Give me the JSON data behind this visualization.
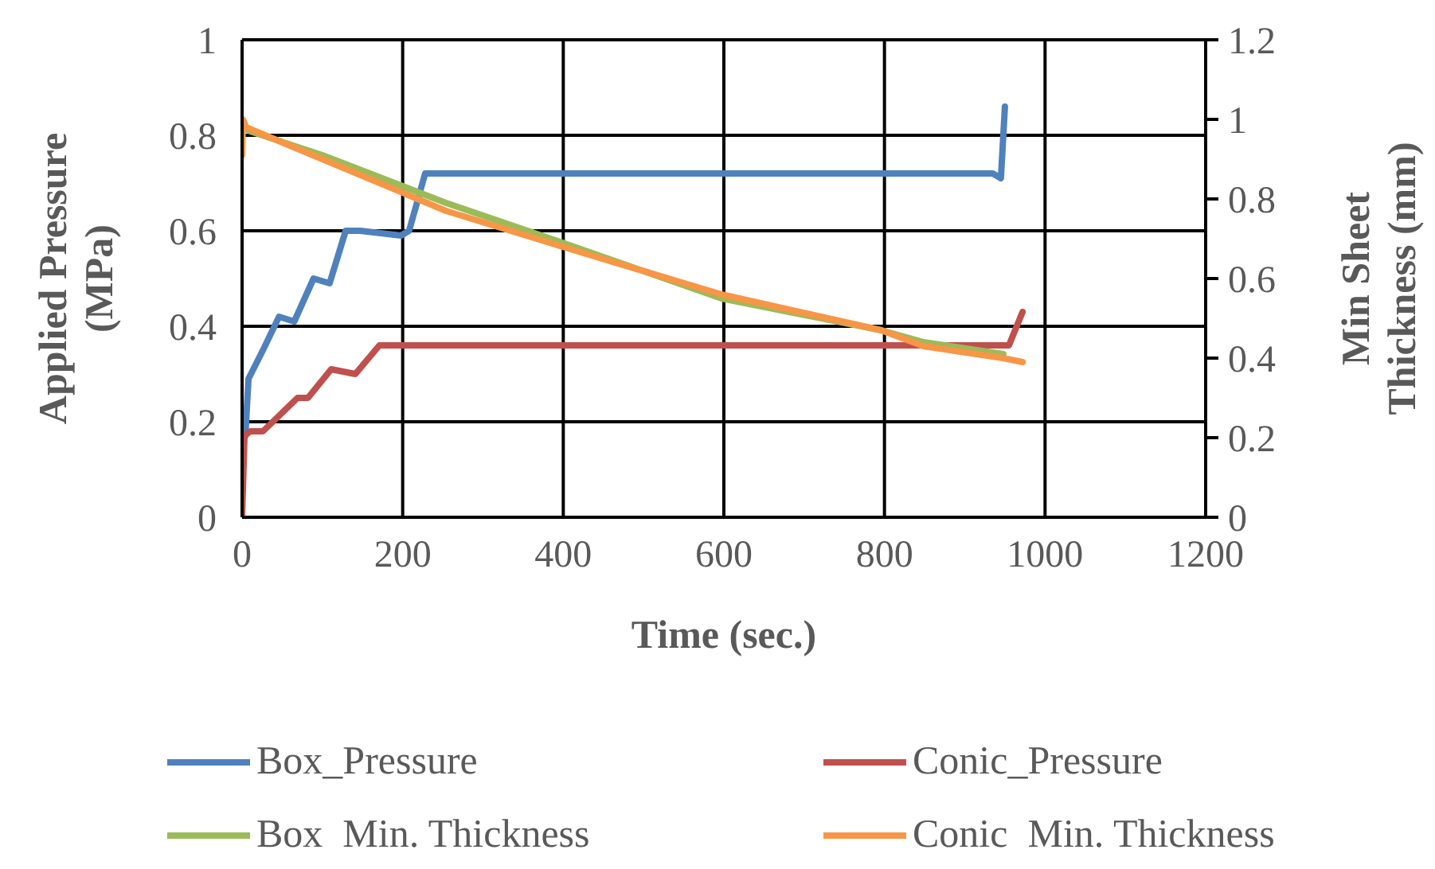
{
  "chart_data": {
    "type": "line",
    "xlabel": "Time (sec.)",
    "ylabel": "Applied Pressure (MPa)",
    "y2label": "Min Sheet Thickness (mm)",
    "xlim": [
      0,
      1200
    ],
    "xticks": [
      0,
      200,
      400,
      600,
      800,
      1000,
      1200
    ],
    "ylim": [
      0,
      1
    ],
    "yticks": [
      0,
      0.2,
      0.4,
      0.6,
      0.8,
      1
    ],
    "y2lim": [
      0,
      1.2
    ],
    "y2ticks": [
      0,
      0.2,
      0.4,
      0.6,
      0.8,
      1,
      1.2
    ],
    "grid": true,
    "legend": "bottom",
    "marker": "none",
    "line_style": "solid",
    "series": [
      {
        "name": "Box_Pressure",
        "color": "#4f81bd",
        "x": [
          4,
          8,
          26,
          46,
          65,
          89,
          109,
          129,
          147,
          198,
          208,
          228,
          240,
          600,
          935,
          945,
          950
        ],
        "values": [
          0.17,
          0.29,
          0.35,
          0.42,
          0.41,
          0.5,
          0.49,
          0.6,
          0.6,
          0.59,
          0.6,
          0.72,
          0.72,
          0.72,
          0.72,
          0.71,
          0.86
        ]
      },
      {
        "name": "Conic_Pressure",
        "color": "#c0504d",
        "x": [
          0,
          3,
          10,
          26,
          69,
          82,
          111,
          141,
          171,
          187,
          600,
          955,
          972
        ],
        "values": [
          0.005,
          0.17,
          0.18,
          0.18,
          0.25,
          0.25,
          0.31,
          0.3,
          0.36,
          0.36,
          0.36,
          0.36,
          0.43
        ]
      },
      {
        "name": "Box  Min. Thickness",
        "color": "#9bbb59",
        "axis": "y2",
        "x": [
          0,
          10,
          100,
          254,
          399,
          597,
          796,
          849,
          948
        ],
        "values": [
          0.98,
          0.97,
          0.91,
          0.79,
          0.69,
          0.55,
          0.47,
          0.44,
          0.41
        ]
      },
      {
        "name": "Conic  Min. Thickness",
        "color": "#f79646",
        "axis": "y2",
        "x": [
          0,
          1,
          5,
          100,
          254,
          399,
          597,
          796,
          849,
          948,
          972
        ],
        "values": [
          0.91,
          1.0,
          0.98,
          0.9,
          0.77,
          0.68,
          0.56,
          0.47,
          0.43,
          0.4,
          0.39
        ]
      }
    ]
  }
}
